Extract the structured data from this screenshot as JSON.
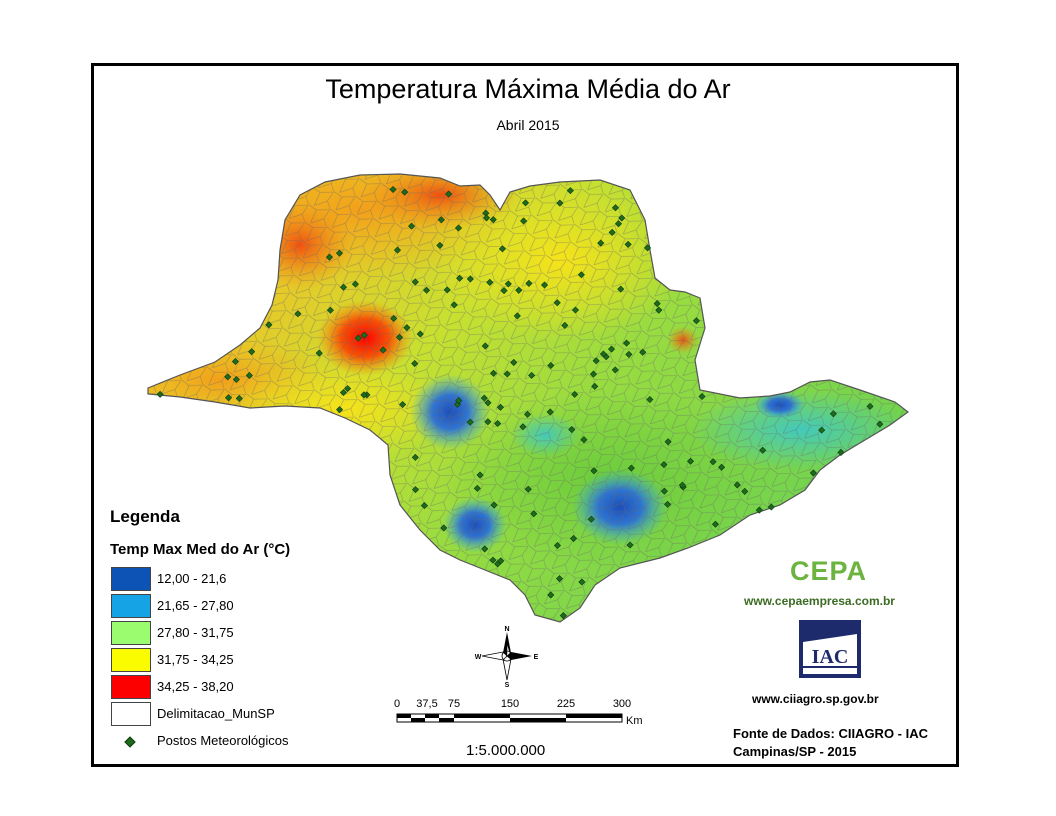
{
  "title": "Temperatura Máxima Média do Ar",
  "subtitle": "Abril 2015",
  "legend": {
    "heading": "Legenda",
    "subheading": "Temp Max Med do Ar (°C)",
    "classes": [
      {
        "label": "12,00 - 21,6",
        "color": "#0d52b5"
      },
      {
        "label": "21,65 - 27,80",
        "color": "#16a3e6"
      },
      {
        "label": "27,80 - 31,75",
        "color": "#9afc6e"
      },
      {
        "label": "31,75 - 34,25",
        "color": "#fcfc00"
      },
      {
        "label": "34,25 - 38,20",
        "color": "#fc0000"
      }
    ],
    "boundary_label": "Delimitacao_MunSP",
    "stations_label": "Postos Meteorológicos"
  },
  "compass": {
    "n": "N",
    "s": "S",
    "e": "E",
    "w": "W"
  },
  "scalebar": {
    "ticks": [
      "0",
      "37,5",
      "75",
      "150",
      "225",
      "300"
    ],
    "unit": "Km",
    "ratio": "1:5.000.000"
  },
  "credits": {
    "cepa_logo": "CEPA",
    "cepa_url": "www.cepaempresa.com.br",
    "iac_logo": "IAC",
    "iac_url": "www.ciiagro.sp.gov.br",
    "source_line1": "Fonte de Dados: CIIAGRO - IAC",
    "source_line2": "Campinas/SP - 2015"
  },
  "colors": {
    "station": "#1e6b1e",
    "boundary": "#555555"
  }
}
